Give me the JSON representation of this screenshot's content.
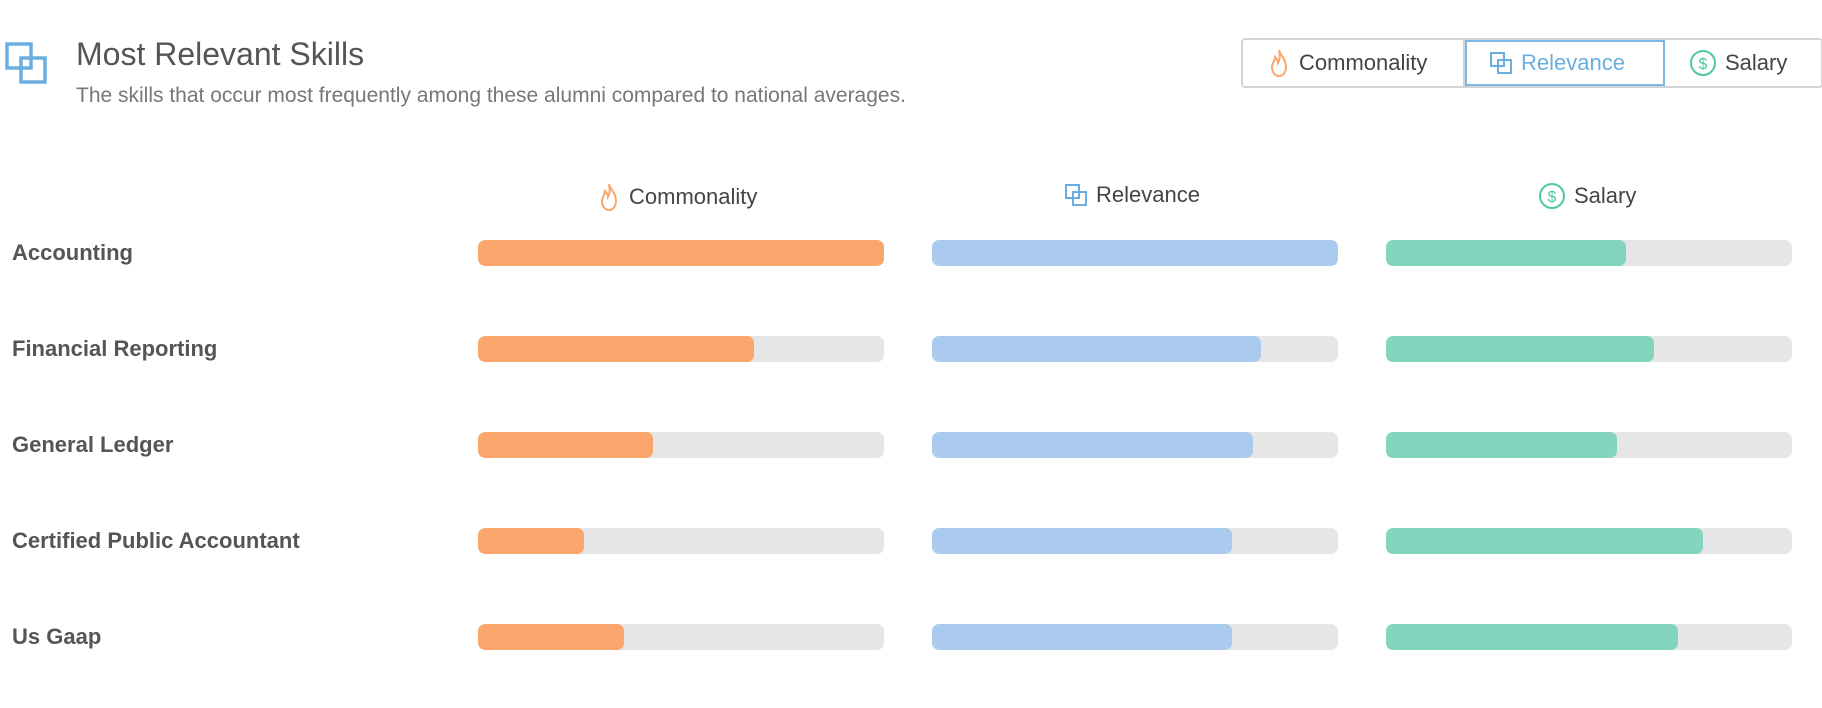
{
  "header": {
    "title": "Most Relevant Skills",
    "subtitle": "The skills that occur most frequently among these alumni compared to national averages.",
    "icon": "overlap-squares-icon"
  },
  "toggles": [
    {
      "label": "Commonality",
      "icon": "flame-icon",
      "active": false
    },
    {
      "label": "Relevance",
      "icon": "overlap-squares-icon",
      "active": true
    },
    {
      "label": "Salary",
      "icon": "dollar-circle-icon",
      "active": false
    }
  ],
  "columns": [
    {
      "label": "Commonality",
      "icon": "flame-icon",
      "color": "#fba66c"
    },
    {
      "label": "Relevance",
      "icon": "overlap-squares-icon",
      "color": "#aacbed"
    },
    {
      "label": "Salary",
      "icon": "dollar-circle-icon",
      "color": "#84d5c0"
    }
  ],
  "colors": {
    "track": "#e6e6e6",
    "accent": "#6aaee0"
  },
  "skills": [
    {
      "name": "Accounting",
      "commonality": 1.0,
      "relevance": 1.0,
      "salary": 0.59
    },
    {
      "name": "Financial Reporting",
      "commonality": 0.68,
      "relevance": 0.81,
      "salary": 0.66
    },
    {
      "name": "General Ledger",
      "commonality": 0.43,
      "relevance": 0.79,
      "salary": 0.57
    },
    {
      "name": "Certified Public Accountant",
      "commonality": 0.26,
      "relevance": 0.74,
      "salary": 0.78
    },
    {
      "name": "Us Gaap",
      "commonality": 0.36,
      "relevance": 0.74,
      "salary": 0.72
    }
  ]
}
